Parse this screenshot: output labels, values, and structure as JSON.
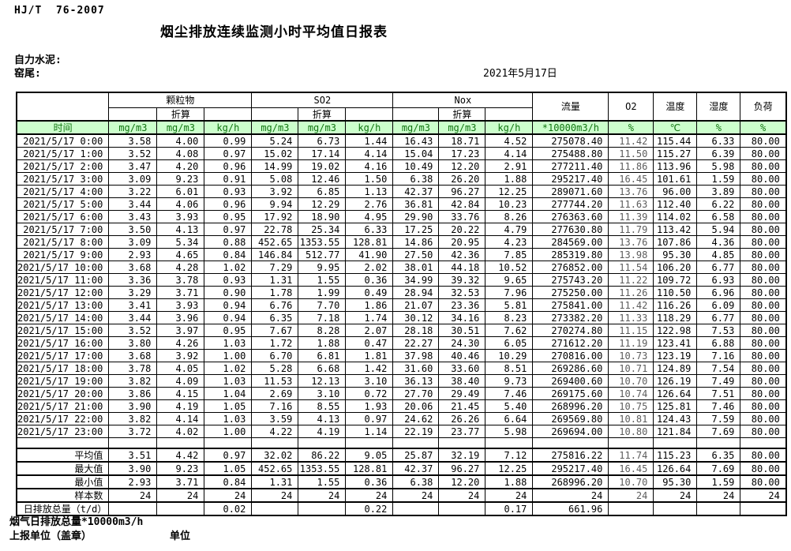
{
  "page": {
    "standard": "HJ/T  76-2007",
    "title": "烟尘排放连续监测小时平均值日报表",
    "company": "自力水泥:",
    "location": "窑尾:",
    "date": "2021年5月17日"
  },
  "table": {
    "time_header": "时间",
    "converted_label": "折算",
    "groups": [
      {
        "label": "颗粒物",
        "units": [
          "mg/m3",
          "mg/m3",
          "kg/h"
        ]
      },
      {
        "label": "SO2",
        "units": [
          "mg/m3",
          "mg/m3",
          "kg/h"
        ]
      },
      {
        "label": "Nox",
        "units": [
          "mg/m3",
          "mg/m3",
          "kg/h"
        ]
      }
    ],
    "single_columns": [
      {
        "label": "流量",
        "unit": "*10000m3/h"
      },
      {
        "label": "O2",
        "unit": "%"
      },
      {
        "label": "温度",
        "unit": "℃"
      },
      {
        "label": "湿度",
        "unit": "%"
      },
      {
        "label": "负荷",
        "unit": "%"
      }
    ],
    "rows": [
      {
        "time": "2021/5/17 0:00",
        "values": [
          "3.58",
          "4.00",
          "0.99",
          "5.24",
          "6.73",
          "1.44",
          "16.43",
          "18.71",
          "4.52",
          "275078.40",
          "11.42",
          "115.44",
          "6.33",
          "80.00"
        ]
      },
      {
        "time": "2021/5/17 1:00",
        "values": [
          "3.52",
          "4.08",
          "0.97",
          "15.02",
          "17.14",
          "4.14",
          "15.04",
          "17.23",
          "4.14",
          "275488.80",
          "11.50",
          "115.27",
          "6.39",
          "80.00"
        ]
      },
      {
        "time": "2021/5/17 2:00",
        "values": [
          "3.47",
          "4.20",
          "0.96",
          "14.99",
          "19.02",
          "4.16",
          "10.49",
          "12.20",
          "2.91",
          "277211.40",
          "11.86",
          "113.96",
          "5.98",
          "80.00"
        ]
      },
      {
        "time": "2021/5/17 3:00",
        "values": [
          "3.09",
          "9.23",
          "0.91",
          "5.08",
          "12.46",
          "1.50",
          "6.38",
          "26.20",
          "1.88",
          "295217.40",
          "16.45",
          "101.61",
          "1.59",
          "80.00"
        ]
      },
      {
        "time": "2021/5/17 4:00",
        "values": [
          "3.22",
          "6.01",
          "0.93",
          "3.92",
          "6.85",
          "1.13",
          "42.37",
          "96.27",
          "12.25",
          "289071.60",
          "13.76",
          "96.00",
          "3.89",
          "80.00"
        ]
      },
      {
        "time": "2021/5/17 5:00",
        "values": [
          "3.44",
          "4.06",
          "0.96",
          "9.94",
          "12.29",
          "2.76",
          "36.81",
          "42.84",
          "10.23",
          "277744.20",
          "11.63",
          "112.40",
          "6.22",
          "80.00"
        ]
      },
      {
        "time": "2021/5/17 6:00",
        "values": [
          "3.43",
          "3.93",
          "0.95",
          "17.92",
          "18.90",
          "4.95",
          "29.90",
          "33.76",
          "8.26",
          "276363.60",
          "11.39",
          "114.02",
          "6.58",
          "80.00"
        ]
      },
      {
        "time": "2021/5/17 7:00",
        "values": [
          "3.50",
          "4.13",
          "0.97",
          "22.78",
          "25.34",
          "6.33",
          "17.25",
          "20.22",
          "4.79",
          "277630.80",
          "11.79",
          "113.42",
          "5.94",
          "80.00"
        ]
      },
      {
        "time": "2021/5/17 8:00",
        "values": [
          "3.09",
          "5.34",
          "0.88",
          "452.65",
          "1353.55",
          "128.81",
          "14.86",
          "20.95",
          "4.23",
          "284569.00",
          "13.76",
          "107.86",
          "4.36",
          "80.00"
        ]
      },
      {
        "time": "2021/5/17 9:00",
        "values": [
          "2.93",
          "4.65",
          "0.84",
          "146.84",
          "512.77",
          "41.90",
          "27.50",
          "42.36",
          "7.85",
          "285319.80",
          "13.98",
          "95.30",
          "4.85",
          "80.00"
        ]
      },
      {
        "time": "2021/5/17 10:00",
        "values": [
          "3.68",
          "4.28",
          "1.02",
          "7.29",
          "9.95",
          "2.02",
          "38.01",
          "44.18",
          "10.52",
          "276852.00",
          "11.54",
          "106.20",
          "6.77",
          "80.00"
        ]
      },
      {
        "time": "2021/5/17 11:00",
        "values": [
          "3.36",
          "3.78",
          "0.93",
          "1.31",
          "1.55",
          "0.36",
          "34.99",
          "39.32",
          "9.65",
          "275743.20",
          "11.22",
          "109.72",
          "6.93",
          "80.00"
        ]
      },
      {
        "time": "2021/5/17 12:00",
        "values": [
          "3.29",
          "3.71",
          "0.90",
          "1.78",
          "1.99",
          "0.49",
          "28.94",
          "32.53",
          "7.96",
          "275250.00",
          "11.26",
          "110.50",
          "6.96",
          "80.00"
        ]
      },
      {
        "time": "2021/5/17 13:00",
        "values": [
          "3.41",
          "3.93",
          "0.94",
          "6.76",
          "7.70",
          "1.86",
          "21.07",
          "23.36",
          "5.81",
          "275841.00",
          "11.42",
          "116.26",
          "6.09",
          "80.00"
        ]
      },
      {
        "time": "2021/5/17 14:00",
        "values": [
          "3.44",
          "3.96",
          "0.94",
          "6.35",
          "7.18",
          "1.74",
          "30.12",
          "34.16",
          "8.23",
          "273382.20",
          "11.33",
          "118.29",
          "6.77",
          "80.00"
        ]
      },
      {
        "time": "2021/5/17 15:00",
        "values": [
          "3.52",
          "3.97",
          "0.95",
          "7.67",
          "8.28",
          "2.07",
          "28.18",
          "30.51",
          "7.62",
          "270274.80",
          "11.15",
          "122.98",
          "7.53",
          "80.00"
        ]
      },
      {
        "time": "2021/5/17 16:00",
        "values": [
          "3.80",
          "4.26",
          "1.03",
          "1.72",
          "1.88",
          "0.47",
          "22.27",
          "24.30",
          "6.05",
          "271612.20",
          "11.19",
          "123.41",
          "6.88",
          "80.00"
        ]
      },
      {
        "time": "2021/5/17 17:00",
        "values": [
          "3.68",
          "3.92",
          "1.00",
          "6.70",
          "6.81",
          "1.81",
          "37.98",
          "40.46",
          "10.29",
          "270816.00",
          "10.73",
          "123.19",
          "7.16",
          "80.00"
        ]
      },
      {
        "time": "2021/5/17 18:00",
        "values": [
          "3.78",
          "4.05",
          "1.02",
          "5.28",
          "6.68",
          "1.42",
          "31.60",
          "33.60",
          "8.51",
          "269286.60",
          "10.71",
          "124.89",
          "7.54",
          "80.00"
        ]
      },
      {
        "time": "2021/5/17 19:00",
        "values": [
          "3.82",
          "4.09",
          "1.03",
          "11.53",
          "12.13",
          "3.10",
          "36.13",
          "38.40",
          "9.73",
          "269400.60",
          "10.70",
          "126.19",
          "7.49",
          "80.00"
        ]
      },
      {
        "time": "2021/5/17 20:00",
        "values": [
          "3.86",
          "4.15",
          "1.04",
          "2.69",
          "3.10",
          "0.72",
          "27.70",
          "29.49",
          "7.46",
          "269175.60",
          "10.74",
          "126.64",
          "7.51",
          "80.00"
        ]
      },
      {
        "time": "2021/5/17 21:00",
        "values": [
          "3.90",
          "4.19",
          "1.05",
          "7.16",
          "8.55",
          "1.93",
          "20.06",
          "21.45",
          "5.40",
          "268996.20",
          "10.75",
          "125.81",
          "7.46",
          "80.00"
        ]
      },
      {
        "time": "2021/5/17 22:00",
        "values": [
          "3.82",
          "4.14",
          "1.03",
          "3.59",
          "4.13",
          "0.97",
          "24.62",
          "26.26",
          "6.64",
          "269569.80",
          "10.81",
          "124.43",
          "7.59",
          "80.00"
        ]
      },
      {
        "time": "2021/5/17 23:00",
        "values": [
          "3.72",
          "4.02",
          "1.00",
          "4.22",
          "4.19",
          "1.14",
          "22.19",
          "23.77",
          "5.98",
          "269694.00",
          "10.80",
          "121.84",
          "7.69",
          "80.00"
        ]
      }
    ],
    "summary": [
      {
        "label": "平均值",
        "values": [
          "3.51",
          "4.42",
          "0.97",
          "32.02",
          "86.22",
          "9.05",
          "25.87",
          "32.19",
          "7.12",
          "275816.22",
          "11.74",
          "115.23",
          "6.35",
          "80.00"
        ]
      },
      {
        "label": "最大值",
        "values": [
          "3.90",
          "9.23",
          "1.05",
          "452.65",
          "1353.55",
          "128.81",
          "42.37",
          "96.27",
          "12.25",
          "295217.40",
          "16.45",
          "126.64",
          "7.69",
          "80.00"
        ]
      },
      {
        "label": "最小值",
        "values": [
          "2.93",
          "3.71",
          "0.84",
          "1.31",
          "1.55",
          "0.36",
          "6.38",
          "12.20",
          "1.88",
          "268996.20",
          "10.70",
          "95.30",
          "1.59",
          "80.00"
        ]
      },
      {
        "label": "样本数",
        "values": [
          "24",
          "24",
          "24",
          "24",
          "24",
          "24",
          "24",
          "24",
          "24",
          "24",
          "24",
          "24",
          "24",
          "24"
        ]
      }
    ],
    "total_row": {
      "label": "日排放总量（t/d）",
      "values": [
        "",
        "",
        "0.02",
        "",
        "",
        "0.22",
        "",
        "",
        "0.17",
        "661.96",
        "",
        "",
        "",
        ""
      ]
    }
  },
  "footer": {
    "flue_total_label": "烟气日排放总量*10000m3/h",
    "report_unit_label": "上报单位（盖章）",
    "unit_label": "单位"
  },
  "colors": {
    "header_row_bg": "#ccffcc",
    "header_row_text": "#117411"
  }
}
